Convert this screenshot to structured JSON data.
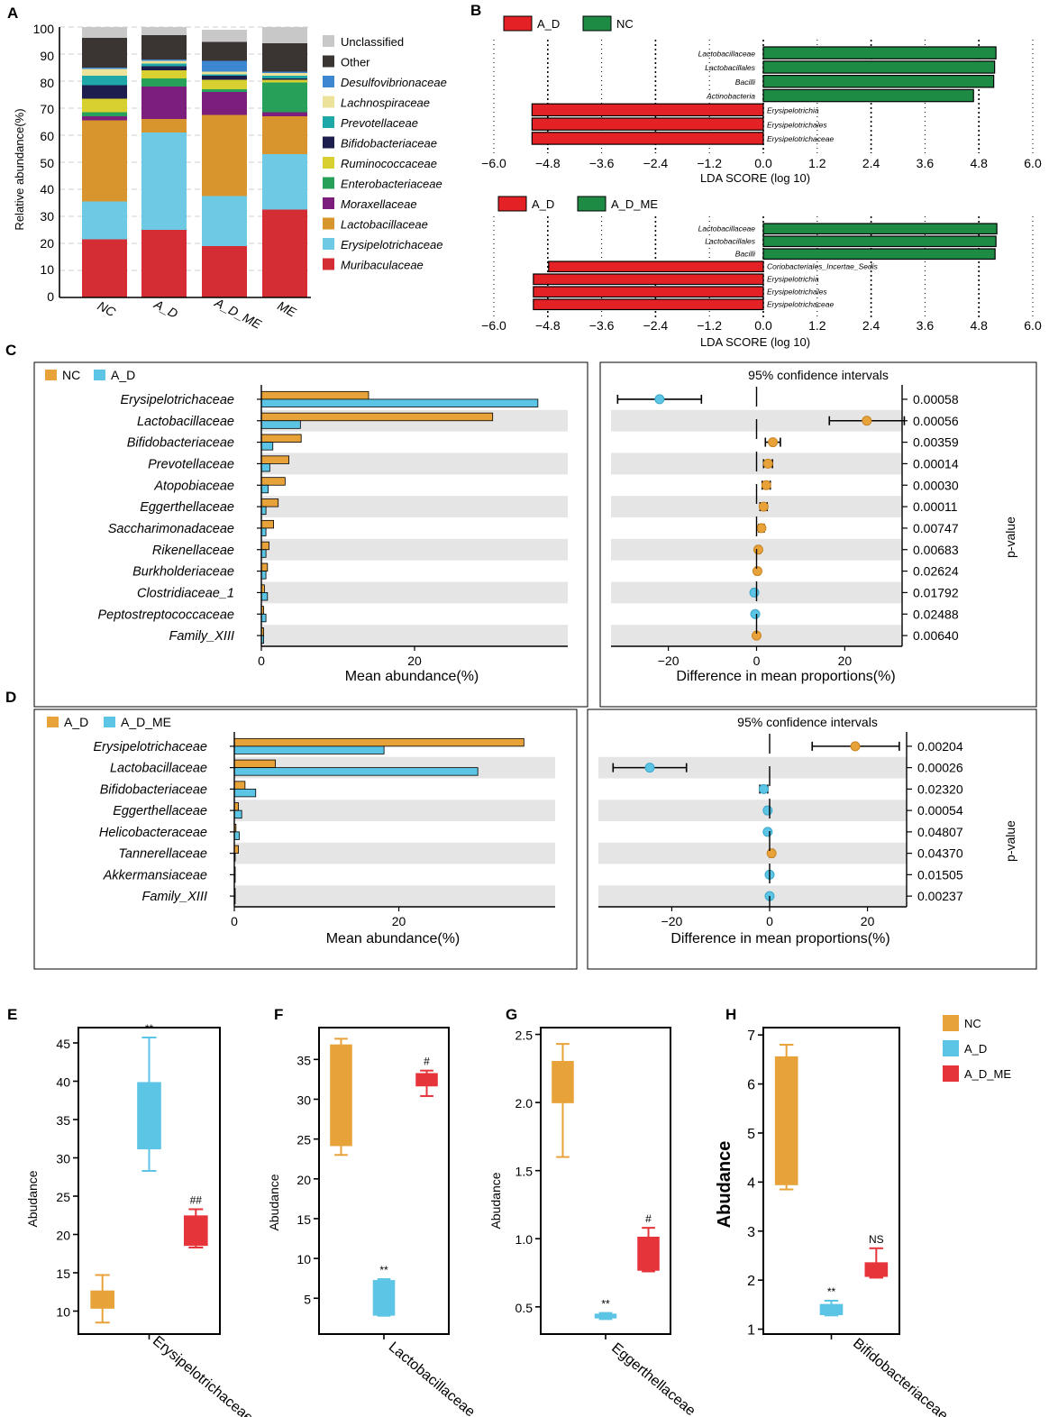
{
  "colors": {
    "NC": "#E8A23A",
    "A_D": "#5CC4E4",
    "A_D_ME": "#E6343B",
    "lda_red": "#E42124",
    "lda_green": "#1E8B44",
    "stripe": "#E5E5E5"
  },
  "chart_data": [
    {
      "id": "A",
      "panel_label": "A",
      "type": "bar",
      "stacked": true,
      "ylabel": "Relative abundance(%)",
      "ylim": [
        0,
        100
      ],
      "yticks": [
        "0",
        "10",
        "20",
        "30",
        "40",
        "50",
        "60",
        "70",
        "80",
        "90",
        "100"
      ],
      "categories": [
        "NC",
        "A_D",
        "A_D_ME",
        "ME"
      ],
      "series": [
        {
          "name": "Muribaculaceae",
          "color": "#D42E34",
          "values": [
            21.5,
            25,
            19,
            32.5
          ]
        },
        {
          "name": "Erysipelotrichaceae",
          "color": "#6ECAE4",
          "values": [
            14,
            36,
            18.5,
            20.5
          ]
        },
        {
          "name": "Lactobacillaceae",
          "color": "#D8952E",
          "values": [
            30,
            5,
            30,
            14
          ]
        },
        {
          "name": "Moraxellaceae",
          "color": "#7C1F7C",
          "values": [
            1.5,
            12,
            8.5,
            1.5
          ]
        },
        {
          "name": "Enterobacteriaceae",
          "color": "#27A05A",
          "values": [
            1.5,
            3,
            1,
            11
          ]
        },
        {
          "name": "Ruminococcaceae",
          "color": "#D8D030",
          "values": [
            5,
            3,
            3.5,
            1
          ]
        },
        {
          "name": "Bifidobacteriaceae",
          "color": "#1E1E4E",
          "values": [
            5,
            1.5,
            1.5,
            0.5
          ]
        },
        {
          "name": "Prevotellaceae",
          "color": "#1FA8A8",
          "values": [
            3.5,
            1,
            0.5,
            1
          ]
        },
        {
          "name": "Lachnospiraceae",
          "color": "#EDE29A",
          "values": [
            2.5,
            1,
            1,
            1
          ]
        },
        {
          "name": "Desulfovibrionaceae",
          "color": "#3D86D0",
          "values": [
            0.5,
            0.5,
            4,
            0.5
          ]
        },
        {
          "name": "Other",
          "color": "#3A3432",
          "values": [
            11,
            9,
            7,
            10.5
          ]
        },
        {
          "name": "Unclassified",
          "color": "#C8C8C8",
          "values": [
            4,
            3,
            4.5,
            6
          ]
        }
      ]
    },
    {
      "id": "B1",
      "panel_label": "B",
      "type": "bar",
      "orientation": "horizontal",
      "legend": [
        {
          "name": "A_D",
          "color": "#E42124"
        },
        {
          "name": "NC",
          "color": "#1E8B44"
        }
      ],
      "xlabel": "LDA SCORE (log 10)",
      "xlim": [
        -6,
        6
      ],
      "xticks": [
        "−6.0",
        "−4.8",
        "−3.6",
        "−2.4",
        "−1.2",
        "0.0",
        "1.2",
        "2.4",
        "3.6",
        "4.8",
        "6.0"
      ],
      "categories": [
        "Lactobacillaceae",
        "Lactobacillales",
        "Bacilli",
        "Actinobacteria",
        "Erysipelotrichia",
        "Erysipelotrichales",
        "Erysipelotrichaceae"
      ],
      "values": [
        5.18,
        5.15,
        5.13,
        4.68,
        -5.15,
        -5.15,
        -5.15
      ]
    },
    {
      "id": "B2",
      "panel_label": "",
      "type": "bar",
      "orientation": "horizontal",
      "legend": [
        {
          "name": "A_D",
          "color": "#E42124"
        },
        {
          "name": "A_D_ME",
          "color": "#1E8B44"
        }
      ],
      "xlabel": "LDA SCORE (log 10)",
      "xlim": [
        -6,
        6
      ],
      "xticks": [
        "−6.0",
        "−4.8",
        "−3.6",
        "−2.4",
        "−1.2",
        "0.0",
        "1.2",
        "2.4",
        "3.6",
        "4.8",
        "6.0"
      ],
      "categories": [
        "Lactobacillaceae",
        "Lactobacillales",
        "Bacilli",
        "Coriobacteriales_Incertae_Sedis",
        "Erysipelotrichia",
        "Erysipelotrichales",
        "Erysipelotrichaceae"
      ],
      "values": [
        5.2,
        5.18,
        5.16,
        -4.78,
        -5.12,
        -5.12,
        -5.12
      ]
    },
    {
      "id": "C",
      "panel_label": "C",
      "type": "bar",
      "orientation": "horizontal",
      "xlabel": "Mean abundance(%)",
      "xlim": [
        0,
        40
      ],
      "xticks": [
        "0",
        "20"
      ],
      "ci_title": "95% confidence intervals",
      "ci_xlabel": "Difference in mean proportions(%)",
      "ci_xlim": [
        -33,
        33
      ],
      "ci_xticks": [
        "−20",
        "0",
        "20"
      ],
      "pvalue_label": "p-value",
      "categories": [
        "Erysipelotrichaceae",
        "Lactobacillaceae",
        "Bifidobacteriaceae",
        "Prevotellaceae",
        "Atopobiaceae",
        "Eggerthellaceae",
        "Saccharimonadaceae",
        "Rikenellaceae",
        "Burkholderiaceae",
        "Clostridiaceae_1",
        "Peptostreptococcaceae",
        "Family_XIII"
      ],
      "series": [
        {
          "name": "NC",
          "color": "#E8A23A",
          "values": [
            14,
            30.2,
            5.2,
            3.6,
            3.1,
            2.2,
            1.6,
            1,
            0.8,
            0.4,
            0.3,
            0.3
          ]
        },
        {
          "name": "A_D",
          "color": "#5CC4E4",
          "values": [
            36.1,
            5.1,
            1.5,
            1.1,
            0.9,
            0.6,
            0.6,
            0.6,
            0.6,
            0.8,
            0.6,
            0.3
          ]
        }
      ],
      "ci": [
        {
          "mean": -22,
          "low": -31.5,
          "high": -12.5,
          "color": "#5CC4E4"
        },
        {
          "mean": 25,
          "low": 16.5,
          "high": 33.5,
          "color": "#E8A23A"
        },
        {
          "mean": 3.7,
          "low": 2,
          "high": 5.4,
          "color": "#E8A23A"
        },
        {
          "mean": 2.6,
          "low": 1.6,
          "high": 3.6,
          "color": "#E8A23A"
        },
        {
          "mean": 2.2,
          "low": 1.3,
          "high": 3.1,
          "color": "#E8A23A"
        },
        {
          "mean": 1.6,
          "low": 0.8,
          "high": 2.4,
          "color": "#E8A23A"
        },
        {
          "mean": 1.1,
          "low": 0.5,
          "high": 1.7,
          "color": "#E8A23A"
        },
        {
          "mean": 0.4,
          "low": 0,
          "high": 0.8,
          "color": "#E8A23A"
        },
        {
          "mean": 0.2,
          "low": -0.2,
          "high": 0.6,
          "color": "#E8A23A"
        },
        {
          "mean": -0.5,
          "low": -0.9,
          "high": -0.1,
          "color": "#5CC4E4"
        },
        {
          "mean": -0.3,
          "low": -0.6,
          "high": 0,
          "color": "#5CC4E4"
        },
        {
          "mean": 0,
          "low": -0.3,
          "high": 0.3,
          "color": "#E8A23A"
        }
      ],
      "pvalues": [
        "0.00058",
        "0.00056",
        "0.00359",
        "0.00014",
        "0.00030",
        "0.00011",
        "0.00747",
        "0.00683",
        "0.02624",
        "0.01792",
        "0.02488",
        "0.00640"
      ]
    },
    {
      "id": "D",
      "panel_label": "D",
      "type": "bar",
      "orientation": "horizontal",
      "xlabel": "Mean abundance(%)",
      "xlim": [
        0,
        39
      ],
      "xticks": [
        "0",
        "20"
      ],
      "ci_title": "95% confidence intervals",
      "ci_xlabel": "Difference in mean proportions(%)",
      "ci_xlim": [
        -35,
        28
      ],
      "ci_xticks": [
        "−20",
        "0",
        "20"
      ],
      "pvalue_label": "p-value",
      "categories": [
        "Erysipelotrichaceae",
        "Lactobacillaceae",
        "Bifidobacteriaceae",
        "Eggerthellaceae",
        "Helicobacteraceae",
        "Tannerellaceae",
        "Akkermansiaceae",
        "Family_XIII"
      ],
      "series": [
        {
          "name": "A_D",
          "color": "#E8A23A",
          "values": [
            35.2,
            5,
            1.3,
            0.5,
            0.2,
            0.5,
            0.1,
            0.1
          ]
        },
        {
          "name": "A_D_ME",
          "color": "#5CC4E4",
          "values": [
            18.2,
            29.6,
            2.6,
            0.9,
            0.6,
            0.1,
            0.1,
            0.1
          ]
        }
      ],
      "ci": [
        {
          "mean": 17.5,
          "low": 8.7,
          "high": 26.5,
          "color": "#E8A23A"
        },
        {
          "mean": -24.5,
          "low": -32,
          "high": -17,
          "color": "#5CC4E4"
        },
        {
          "mean": -1.2,
          "low": -2,
          "high": -0.4,
          "color": "#5CC4E4"
        },
        {
          "mean": -0.4,
          "low": -0.8,
          "high": 0,
          "color": "#5CC4E4"
        },
        {
          "mean": -0.4,
          "low": -0.7,
          "high": -0.1,
          "color": "#5CC4E4"
        },
        {
          "mean": 0.4,
          "low": 0,
          "high": 0.8,
          "color": "#E8A23A"
        },
        {
          "mean": 0,
          "low": -0.2,
          "high": 0.2,
          "color": "#5CC4E4"
        },
        {
          "mean": 0,
          "low": -0.2,
          "high": 0.2,
          "color": "#5CC4E4"
        }
      ],
      "pvalues": [
        "0.00204",
        "0.00026",
        "0.02320",
        "0.00054",
        "0.04807",
        "0.04370",
        "0.01505",
        "0.00237"
      ]
    },
    {
      "id": "E",
      "panel_label": "E",
      "type": "box",
      "xlabel": "Erysipelotrichaceae",
      "ylabel": "Abudance",
      "ylim": [
        7,
        47
      ],
      "yticks": [
        {
          "v": 10,
          "t": "10"
        },
        {
          "v": 15,
          "t": "15"
        },
        {
          "v": 20,
          "t": "20"
        },
        {
          "v": 25,
          "t": "25"
        },
        {
          "v": 30,
          "t": "30"
        },
        {
          "v": 35,
          "t": "35"
        },
        {
          "v": 40,
          "t": "40"
        },
        {
          "v": 45,
          "t": "45"
        }
      ],
      "boxes": [
        {
          "group": "NC",
          "min": 8.5,
          "q1": 10.4,
          "median": 11.5,
          "q3": 12.6,
          "max": 14.7,
          "sig": ""
        },
        {
          "group": "A_D",
          "min": 28.3,
          "q1": 31.2,
          "median": 35,
          "q3": 39.8,
          "max": 45.7,
          "sig": "**"
        },
        {
          "group": "A_D_ME",
          "min": 18.3,
          "q1": 18.6,
          "median": 20,
          "q3": 22.4,
          "max": 23.3,
          "sig": "##"
        }
      ]
    },
    {
      "id": "F",
      "panel_label": "F",
      "type": "box",
      "xlabel": "Lactobacillaceae",
      "ylabel": "Abudance",
      "ylim": [
        0.5,
        39
      ],
      "yticks": [
        {
          "v": 5,
          "t": "5"
        },
        {
          "v": 10,
          "t": "10"
        },
        {
          "v": 15,
          "t": "15"
        },
        {
          "v": 20,
          "t": "20"
        },
        {
          "v": 25,
          "t": "25"
        },
        {
          "v": 30,
          "t": "30"
        },
        {
          "v": 35,
          "t": "35"
        }
      ],
      "boxes": [
        {
          "group": "NC",
          "min": 23,
          "q1": 24.2,
          "median": 30,
          "q3": 36.8,
          "max": 37.6,
          "sig": ""
        },
        {
          "group": "A_D",
          "min": 2.8,
          "q1": 2.9,
          "median": 4.5,
          "q3": 7.2,
          "max": 7.4,
          "sig": "**"
        },
        {
          "group": "A_D_ME",
          "min": 30.4,
          "q1": 31.7,
          "median": 32.5,
          "q3": 33.2,
          "max": 33.6,
          "sig": "#"
        }
      ]
    },
    {
      "id": "G",
      "panel_label": "G",
      "type": "box",
      "xlabel": "Eggerthellaceae",
      "ylabel": "Abudance",
      "ylim": [
        0.3,
        2.55
      ],
      "yticks": [
        {
          "v": 0.5,
          "t": "0.5"
        },
        {
          "v": 1.0,
          "t": "1.0"
        },
        {
          "v": 1.5,
          "t": "1.5"
        },
        {
          "v": 2.0,
          "t": "2.0"
        },
        {
          "v": 2.5,
          "t": "2.5"
        }
      ],
      "boxes": [
        {
          "group": "NC",
          "min": 1.6,
          "q1": 2.0,
          "median": 2.15,
          "q3": 2.3,
          "max": 2.43,
          "sig": ""
        },
        {
          "group": "A_D",
          "min": 0.41,
          "q1": 0.42,
          "median": 0.43,
          "q3": 0.445,
          "max": 0.455,
          "sig": "**"
        },
        {
          "group": "A_D_ME",
          "min": 0.76,
          "q1": 0.77,
          "median": 0.85,
          "q3": 1.01,
          "max": 1.08,
          "sig": "#"
        }
      ]
    },
    {
      "id": "H",
      "panel_label": "H",
      "type": "box",
      "xlabel": "Bifidobacteriaceae",
      "ylabel": "Abudance",
      "ylim": [
        0.9,
        7.15
      ],
      "yticks": [
        {
          "v": 1,
          "t": "1"
        },
        {
          "v": 2,
          "t": "2"
        },
        {
          "v": 3,
          "t": "3"
        },
        {
          "v": 4,
          "t": "4"
        },
        {
          "v": 5,
          "t": "5"
        },
        {
          "v": 6,
          "t": "6"
        },
        {
          "v": 7,
          "t": "7"
        }
      ],
      "boxes": [
        {
          "group": "NC",
          "min": 3.85,
          "q1": 3.95,
          "median": 5.2,
          "q3": 6.55,
          "max": 6.8,
          "sig": ""
        },
        {
          "group": "A_D",
          "min": 1.28,
          "q1": 1.3,
          "median": 1.4,
          "q3": 1.5,
          "max": 1.58,
          "sig": "**"
        },
        {
          "group": "A_D_ME",
          "min": 2.05,
          "q1": 2.08,
          "median": 2.2,
          "q3": 2.35,
          "max": 2.65,
          "sig": "NS"
        }
      ]
    }
  ],
  "box_legend": [
    "NC",
    "A_D",
    "A_D_ME"
  ]
}
